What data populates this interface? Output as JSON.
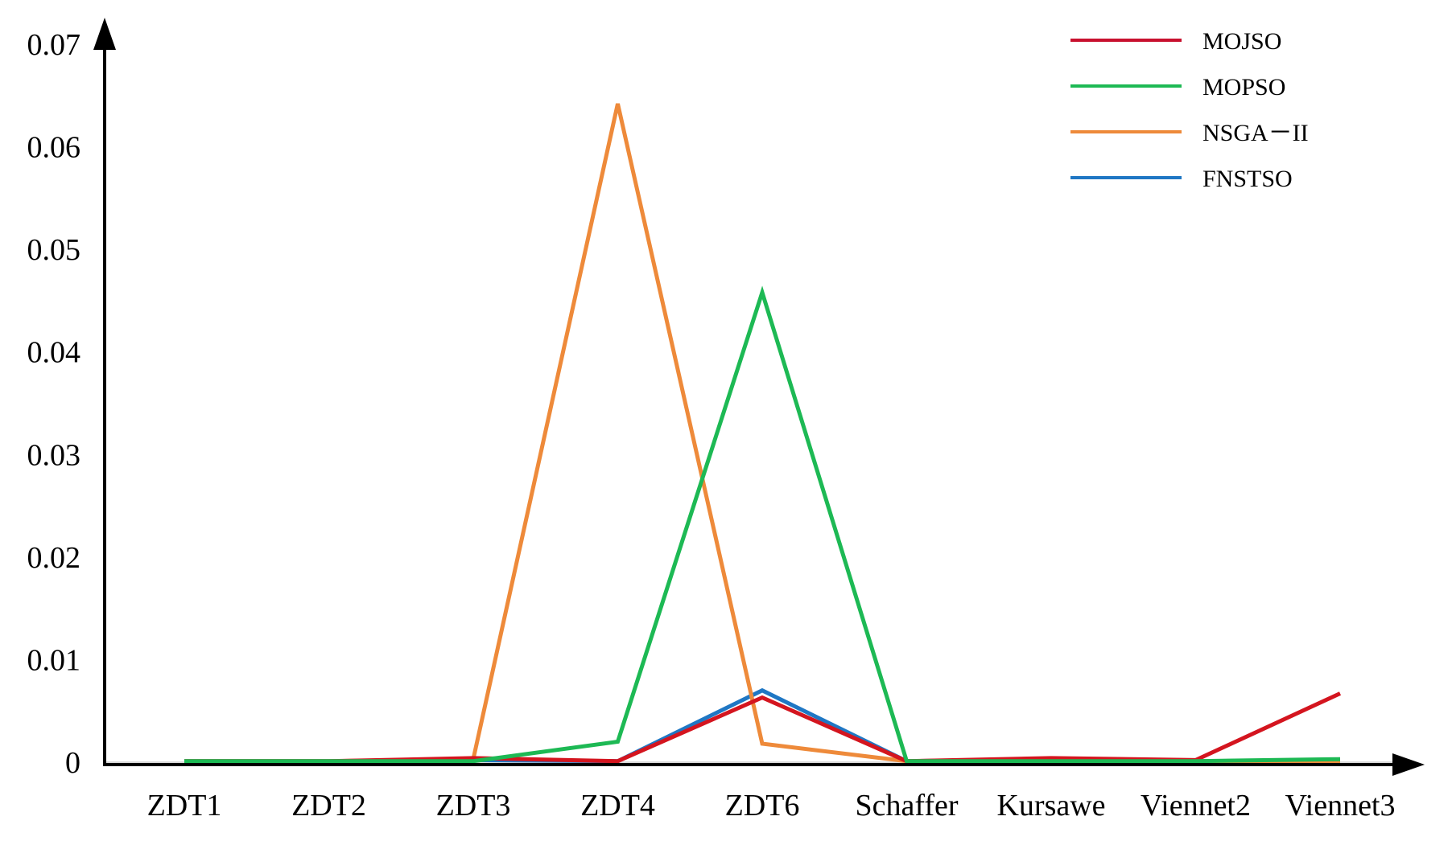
{
  "chart_data": {
    "type": "line",
    "title": "",
    "xlabel": "",
    "ylabel": "",
    "categories": [
      "ZDT1",
      "ZDT2",
      "ZDT3",
      "ZDT4",
      "ZDT6",
      "Schaffer",
      "Kursawe",
      "Viennet2",
      "Viennet3"
    ],
    "ylim": [
      0,
      0.07
    ],
    "yticks": [
      0,
      0.01,
      0.02,
      0.03,
      0.04,
      0.05,
      0.06,
      0.07
    ],
    "ytick_labels": [
      "0",
      "0.01",
      "0.02",
      "0.03",
      "0.04",
      "0.05",
      "0.06",
      "0.07"
    ],
    "grid": false,
    "legend_position": "top-right",
    "series": [
      {
        "name": "MOJSO",
        "color": "#d4151f",
        "legend_color": "#c8102e",
        "values": [
          0.0001,
          0.0001,
          0.0004,
          0.0001,
          0.0063,
          0.0001,
          0.0004,
          0.0002,
          0.0067
        ]
      },
      {
        "name": "MOPSO",
        "color": "#1db954",
        "legend_color": "#1db954",
        "values": [
          0.0001,
          0.0001,
          0.0001,
          0.002,
          0.0458,
          0.0001,
          0.0001,
          0.0001,
          0.0003
        ]
      },
      {
        "name": "NSGA－II",
        "color": "#ee8a3a",
        "legend_color": "#ee8a3a",
        "values": [
          0.0001,
          0.0001,
          0.0003,
          0.0642,
          0.0018,
          0.0001,
          0.0001,
          0.0001,
          0.0001
        ]
      },
      {
        "name": "FNSTSO",
        "color": "#1f77c4",
        "legend_color": "#1f77c4",
        "values": [
          0.0001,
          0.0001,
          0.0002,
          0.0001,
          0.007,
          0.0001,
          0.0003,
          0.0001,
          0.0001
        ]
      }
    ],
    "draw_order": [
      "FNSTSO",
      "NSGA－II",
      "MOJSO",
      "MOPSO"
    ]
  }
}
